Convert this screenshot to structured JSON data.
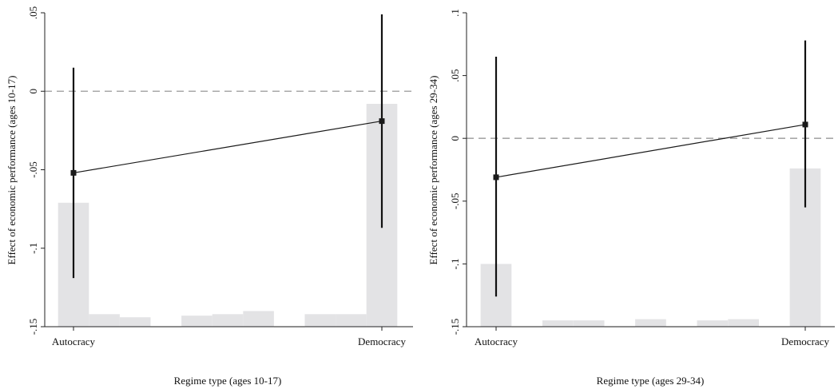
{
  "colors": {
    "hist_fill": "#e3e3e5",
    "line": "#1a1a1a",
    "errorbar": "#111111",
    "marker": "#1a1a1a",
    "zero_line": "#a8a8a8",
    "axis": "#222222"
  },
  "chart_data": [
    {
      "type": "line",
      "subtype": "marginal-effect-with-histogram",
      "xlabel": "Regime type (ages 10-17)",
      "ylabel": "Effect of economic performance (ages 10-17)",
      "x_tick_labels": [
        "Autocracy",
        "Democracy"
      ],
      "ylim": [
        -0.15,
        0.05
      ],
      "y_ticks": [
        0.05,
        0,
        -0.05,
        -0.1,
        -0.15
      ],
      "y_tick_labels": [
        ".05",
        "0",
        "-.05",
        "-.1",
        "-.15"
      ],
      "reference_line": 0,
      "grid": false,
      "points": [
        {
          "x": 0,
          "estimate": -0.052,
          "ci_low": -0.119,
          "ci_high": 0.015
        },
        {
          "x": 1,
          "estimate": -0.019,
          "ci_low": -0.087,
          "ci_high": 0.049
        }
      ],
      "histogram": {
        "bin_edges": [
          -0.05,
          0.05,
          0.15,
          0.25,
          0.35,
          0.45,
          0.55,
          0.65,
          0.75,
          0.85,
          0.95,
          1.05
        ],
        "tops": [
          -0.071,
          -0.142,
          -0.144,
          -0.15,
          -0.143,
          -0.142,
          -0.14,
          -0.15,
          -0.142,
          -0.142,
          -0.008
        ]
      }
    },
    {
      "type": "line",
      "subtype": "marginal-effect-with-histogram",
      "xlabel": "Regime type (ages 29-34)",
      "ylabel": "Effect of economic performance (ages 29-34)",
      "x_tick_labels": [
        "Autocracy",
        "Democracy"
      ],
      "ylim": [
        -0.15,
        0.1
      ],
      "y_ticks": [
        0.1,
        0.05,
        0,
        -0.05,
        -0.1,
        -0.15
      ],
      "y_tick_labels": [
        ".1",
        ".05",
        "0",
        "-.05",
        "-.1",
        "-.15"
      ],
      "reference_line": 0,
      "grid": false,
      "points": [
        {
          "x": 0,
          "estimate": -0.031,
          "ci_low": -0.126,
          "ci_high": 0.065
        },
        {
          "x": 1,
          "estimate": 0.011,
          "ci_low": -0.055,
          "ci_high": 0.078
        }
      ],
      "histogram": {
        "bin_edges": [
          -0.05,
          0.05,
          0.15,
          0.25,
          0.35,
          0.45,
          0.55,
          0.65,
          0.75,
          0.85,
          0.95,
          1.05
        ],
        "tops": [
          -0.1,
          -0.15,
          -0.145,
          -0.145,
          -0.15,
          -0.144,
          -0.15,
          -0.145,
          -0.144,
          -0.15,
          -0.024
        ]
      }
    }
  ]
}
